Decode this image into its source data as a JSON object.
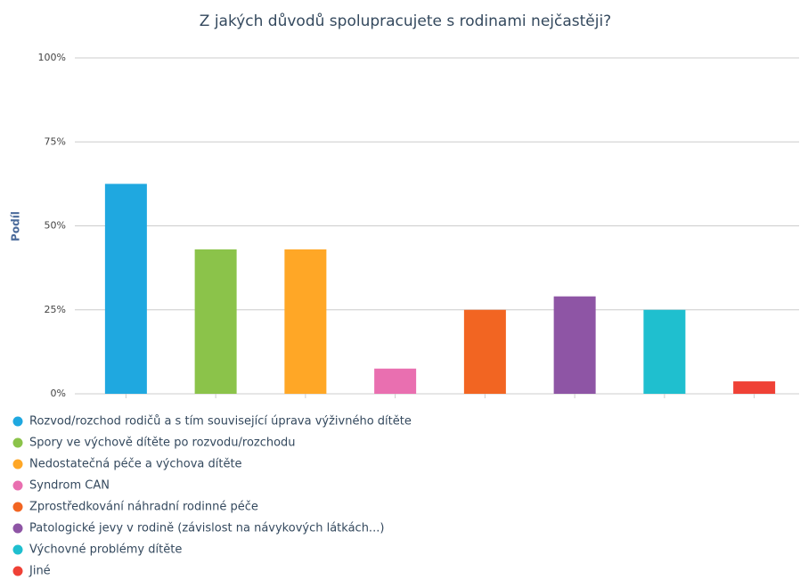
{
  "chart_data": {
    "type": "bar",
    "title": "Z jakých důvodů spolupracujete s rodinami nejčastěji?",
    "y_label": "Podíl",
    "categories": [
      "Rozvod/rozchod rodičů a s tím související úprava výživného dítěte",
      "Spory ve výchově dítěte po rozvodu/rozchodu",
      "Nedostatečná péče a výchova dítěte",
      "Syndrom CAN",
      "Zprostředkování náhradní rodinné péče",
      "Patologické jevy v rodině (závislost na návykových látkách...)",
      "Výchovné problémy dítěte",
      "Jiné"
    ],
    "values": [
      62.5,
      43,
      43,
      7.5,
      25,
      29,
      25,
      3.7
    ],
    "colors": [
      "#1fa8e0",
      "#8bc34a",
      "#ffa726",
      "#e96fb0",
      "#f26522",
      "#8e55a5",
      "#1fbfcf",
      "#ef4136"
    ],
    "ylim": [
      0,
      100
    ],
    "yticks": [
      {
        "value": 0,
        "label": "0%"
      },
      {
        "value": 25,
        "label": "25%"
      },
      {
        "value": 50,
        "label": "50%"
      },
      {
        "value": 75,
        "label": "75%"
      },
      {
        "value": 100,
        "label": "100%"
      }
    ],
    "grid": true,
    "legend": "bottom"
  }
}
